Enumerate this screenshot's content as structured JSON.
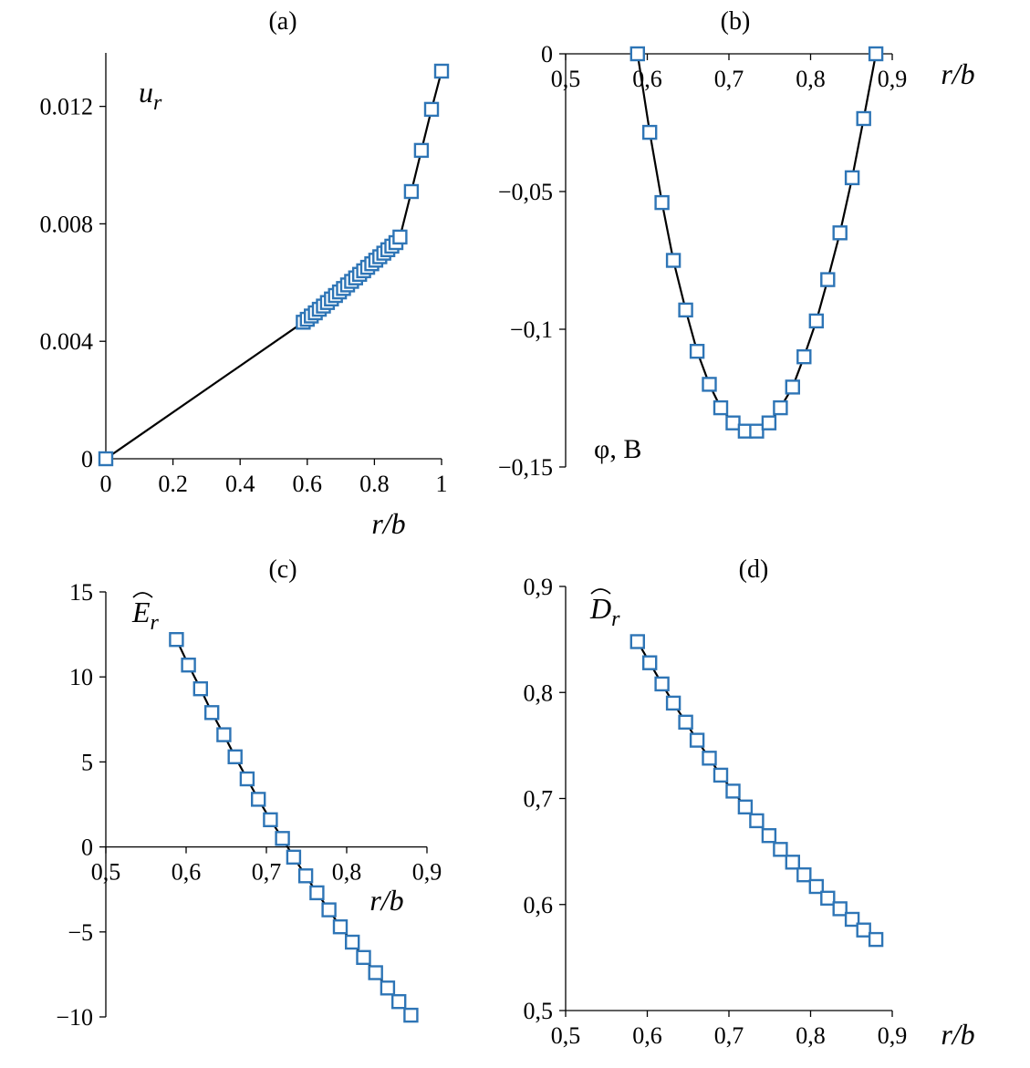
{
  "figure": {
    "marker_color": "#2e75b6",
    "line_color": "#000000"
  },
  "chart_data": [
    {
      "id": "a",
      "type": "line",
      "panel_label": "(a)",
      "ylabel_main": "u",
      "ylabel_sub": "r",
      "xlabel": "r/b",
      "xlim": [
        0,
        1
      ],
      "ylim": [
        0,
        0.0132
      ],
      "xticks": [
        {
          "v": 0,
          "t": "0"
        },
        {
          "v": 0.2,
          "t": "0.2"
        },
        {
          "v": 0.4,
          "t": "0.4"
        },
        {
          "v": 0.6,
          "t": "0.6"
        },
        {
          "v": 0.8,
          "t": "0.8"
        },
        {
          "v": 1,
          "t": "1"
        }
      ],
      "yticks": [
        {
          "v": 0,
          "t": "0"
        },
        {
          "v": 0.004,
          "t": "0.004"
        },
        {
          "v": 0.008,
          "t": "0.008"
        },
        {
          "v": 0.012,
          "t": "0.012"
        }
      ],
      "x_axis_at": 0,
      "series": [
        {
          "x": [
            0,
            0.588,
            0.6,
            0.612,
            0.624,
            0.636,
            0.648,
            0.66,
            0.672,
            0.684,
            0.696,
            0.708,
            0.72,
            0.732,
            0.744,
            0.756,
            0.768,
            0.78,
            0.792,
            0.804,
            0.816,
            0.828,
            0.84,
            0.852,
            0.864,
            0.876,
            0.91,
            0.94,
            0.97,
            1.0
          ],
          "y": [
            0,
            0.00465,
            0.00475,
            0.00486,
            0.00497,
            0.00509,
            0.0052,
            0.00532,
            0.00544,
            0.00556,
            0.00568,
            0.0058,
            0.00592,
            0.00604,
            0.00616,
            0.00628,
            0.0064,
            0.00652,
            0.00664,
            0.00676,
            0.00688,
            0.007,
            0.00712,
            0.00724,
            0.00736,
            0.00755,
            0.0091,
            0.0105,
            0.0119,
            0.0132
          ],
          "markers": [
            0,
            1,
            2,
            3,
            4,
            5,
            6,
            7,
            8,
            9,
            10,
            11,
            12,
            13,
            14,
            15,
            16,
            17,
            18,
            19,
            20,
            21,
            22,
            23,
            24,
            25,
            26,
            27,
            28,
            29
          ]
        }
      ]
    },
    {
      "id": "b",
      "type": "line",
      "panel_label": "(b)",
      "ylabel_main": "φ, B",
      "ylabel_sub": "",
      "xlabel": "r/b",
      "xlim": [
        0.5,
        0.9
      ],
      "ylim": [
        -0.15,
        0
      ],
      "xticks": [
        {
          "v": 0.5,
          "t": "0,5"
        },
        {
          "v": 0.6,
          "t": "0,6"
        },
        {
          "v": 0.7,
          "t": "0,7"
        },
        {
          "v": 0.8,
          "t": "0,8"
        },
        {
          "v": 0.9,
          "t": "0,9"
        }
      ],
      "yticks": [
        {
          "v": 0,
          "t": "0"
        },
        {
          "v": -0.05,
          "t": "−0,05"
        },
        {
          "v": -0.1,
          "t": "−0,1"
        },
        {
          "v": -0.15,
          "t": "−0,15"
        }
      ],
      "x_axis_at": 0,
      "series": [
        {
          "x": [
            0.588,
            0.603,
            0.618,
            0.632,
            0.647,
            0.661,
            0.676,
            0.69,
            0.705,
            0.72,
            0.734,
            0.749,
            0.763,
            0.778,
            0.792,
            0.807,
            0.821,
            0.836,
            0.851,
            0.865,
            0.88
          ],
          "y": [
            0,
            -0.0285,
            -0.054,
            -0.075,
            -0.093,
            -0.108,
            -0.12,
            -0.1285,
            -0.134,
            -0.137,
            -0.137,
            -0.134,
            -0.1285,
            -0.121,
            -0.11,
            -0.097,
            -0.082,
            -0.065,
            -0.045,
            -0.0235,
            0
          ],
          "markers": [
            0,
            1,
            2,
            3,
            4,
            5,
            6,
            7,
            8,
            9,
            10,
            11,
            12,
            13,
            14,
            15,
            16,
            17,
            18,
            19,
            20
          ]
        }
      ]
    },
    {
      "id": "c",
      "type": "line",
      "panel_label": "(c)",
      "ylabel_main": "E",
      "ylabel_sub": "r",
      "xlabel": "r/b",
      "xlim": [
        0.5,
        0.9
      ],
      "ylim": [
        -10,
        15
      ],
      "xticks": [
        {
          "v": 0.5,
          "t": "0,5"
        },
        {
          "v": 0.6,
          "t": "0,6"
        },
        {
          "v": 0.7,
          "t": "0,7"
        },
        {
          "v": 0.8,
          "t": "0,8"
        },
        {
          "v": 0.9,
          "t": "0,9"
        }
      ],
      "yticks": [
        {
          "v": 15,
          "t": "15"
        },
        {
          "v": 10,
          "t": "10"
        },
        {
          "v": 5,
          "t": "5"
        },
        {
          "v": 0,
          "t": "0"
        },
        {
          "v": -5,
          "t": "−5"
        },
        {
          "v": -10,
          "t": "−10"
        }
      ],
      "x_axis_at": 0,
      "series": [
        {
          "x": [
            0.588,
            0.603,
            0.618,
            0.632,
            0.647,
            0.661,
            0.676,
            0.69,
            0.705,
            0.72,
            0.734,
            0.749,
            0.763,
            0.778,
            0.792,
            0.807,
            0.821,
            0.836,
            0.851,
            0.865,
            0.88
          ],
          "y": [
            12.2,
            10.7,
            9.3,
            7.9,
            6.6,
            5.3,
            4.0,
            2.8,
            1.6,
            0.5,
            -0.6,
            -1.7,
            -2.7,
            -3.7,
            -4.7,
            -5.6,
            -6.5,
            -7.4,
            -8.3,
            -9.1,
            -9.9
          ],
          "markers": [
            0,
            1,
            2,
            3,
            4,
            5,
            6,
            7,
            8,
            9,
            10,
            11,
            12,
            13,
            14,
            15,
            16,
            17,
            18,
            19,
            20
          ]
        }
      ]
    },
    {
      "id": "d",
      "type": "line",
      "panel_label": "(d)",
      "ylabel_main": "D",
      "ylabel_sub": "r",
      "xlabel": "r/b",
      "xlim": [
        0.5,
        0.9
      ],
      "ylim": [
        0.5,
        0.9
      ],
      "xticks": [
        {
          "v": 0.5,
          "t": "0,5"
        },
        {
          "v": 0.6,
          "t": "0,6"
        },
        {
          "v": 0.7,
          "t": "0,7"
        },
        {
          "v": 0.8,
          "t": "0,8"
        },
        {
          "v": 0.9,
          "t": "0,9"
        }
      ],
      "yticks": [
        {
          "v": 0.9,
          "t": "0,9"
        },
        {
          "v": 0.8,
          "t": "0,8"
        },
        {
          "v": 0.7,
          "t": "0,7"
        },
        {
          "v": 0.6,
          "t": "0,6"
        },
        {
          "v": 0.5,
          "t": "0,5"
        }
      ],
      "x_axis_at": 0.5,
      "series": [
        {
          "x": [
            0.588,
            0.603,
            0.618,
            0.632,
            0.647,
            0.661,
            0.676,
            0.69,
            0.705,
            0.72,
            0.734,
            0.749,
            0.763,
            0.778,
            0.792,
            0.807,
            0.821,
            0.836,
            0.851,
            0.865,
            0.88
          ],
          "y": [
            0.848,
            0.828,
            0.808,
            0.79,
            0.772,
            0.755,
            0.738,
            0.722,
            0.707,
            0.692,
            0.679,
            0.665,
            0.652,
            0.64,
            0.628,
            0.617,
            0.606,
            0.596,
            0.586,
            0.576,
            0.567
          ],
          "markers": [
            0,
            1,
            2,
            3,
            4,
            5,
            6,
            7,
            8,
            9,
            10,
            11,
            12,
            13,
            14,
            15,
            16,
            17,
            18,
            19,
            20
          ]
        }
      ]
    }
  ]
}
